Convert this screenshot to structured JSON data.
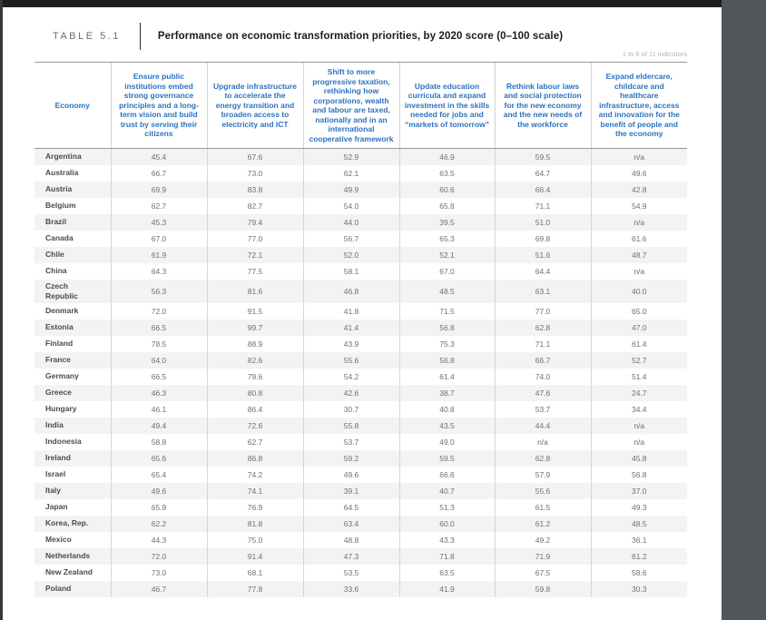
{
  "masthead": {
    "table_label": "TABLE 5.1",
    "title": "Performance on economic transformation priorities, by 2020 score (0–100 scale)",
    "indicator_note": "1 to 6 of 11 indicators"
  },
  "table": {
    "economy_header": "Economy",
    "columns": [
      "Ensure public institutions embed strong governance principles and a long-term vision and build trust by serving their citizens",
      "Upgrade infrastructure to accelerate the energy transition and broaden access to electricity and ICT",
      "Shift to more progressive taxation, rethinking how corporations, wealth and labour are taxed, nationally and in an international cooperative framework",
      "Update education curricula and expand investment in the skills needed for jobs and “markets of tomorrow”",
      "Rethink labour laws and social protection for the new economy and the new needs of the workforce",
      "Expand eldercare, childcare and healthcare infrastructure, access and innovation for the benefit of people and the economy"
    ],
    "rows": [
      {
        "economy": "Argentina",
        "values": [
          "45.4",
          "67.6",
          "52.9",
          "46.9",
          "59.5",
          "n/a"
        ]
      },
      {
        "economy": "Australia",
        "values": [
          "66.7",
          "73.0",
          "62.1",
          "63.5",
          "64.7",
          "49.6"
        ]
      },
      {
        "economy": "Austria",
        "values": [
          "69.9",
          "83.8",
          "49.9",
          "60.6",
          "66.4",
          "42.8"
        ]
      },
      {
        "economy": "Belgium",
        "values": [
          "62.7",
          "82.7",
          "54.0",
          "65.8",
          "71.1",
          "54.9"
        ]
      },
      {
        "economy": "Brazil",
        "values": [
          "45.3",
          "79.4",
          "44.0",
          "39.5",
          "51.0",
          "n/a"
        ]
      },
      {
        "economy": "Canada",
        "values": [
          "67.0",
          "77.0",
          "56.7",
          "65.3",
          "69.8",
          "61.6"
        ]
      },
      {
        "economy": "Chile",
        "values": [
          "61.9",
          "72.1",
          "52.0",
          "52.1",
          "51.6",
          "48.7"
        ]
      },
      {
        "economy": "China",
        "values": [
          "64.3",
          "77.5",
          "58.1",
          "67.0",
          "64.4",
          "n/a"
        ]
      },
      {
        "economy": "Czech Republic",
        "values": [
          "56.3",
          "81.6",
          "46.8",
          "48.5",
          "63.1",
          "40.0"
        ]
      },
      {
        "economy": "Denmark",
        "values": [
          "72.0",
          "91.5",
          "41.8",
          "71.5",
          "77.0",
          "65.0"
        ]
      },
      {
        "economy": "Estonia",
        "values": [
          "66.5",
          "99.7",
          "41.4",
          "56.8",
          "62.8",
          "47.0"
        ]
      },
      {
        "economy": "Finland",
        "values": [
          "78.5",
          "88.9",
          "43.9",
          "75.3",
          "71.1",
          "61.4"
        ]
      },
      {
        "economy": "France",
        "values": [
          "64.0",
          "82.6",
          "55.6",
          "56.8",
          "66.7",
          "52.7"
        ]
      },
      {
        "economy": "Germany",
        "values": [
          "66.5",
          "79.6",
          "54.2",
          "61.4",
          "74.0",
          "51.4"
        ]
      },
      {
        "economy": "Greece",
        "values": [
          "46.3",
          "80.8",
          "42.6",
          "38.7",
          "47.6",
          "24.7"
        ]
      },
      {
        "economy": "Hungary",
        "values": [
          "46.1",
          "86.4",
          "30.7",
          "40.8",
          "53.7",
          "34.4"
        ]
      },
      {
        "economy": "India",
        "values": [
          "49.4",
          "72.6",
          "55.8",
          "43.5",
          "44.4",
          "n/a"
        ]
      },
      {
        "economy": "Indonesia",
        "values": [
          "58.8",
          "62.7",
          "53.7",
          "49.0",
          "n/a",
          "n/a"
        ]
      },
      {
        "economy": "Ireland",
        "values": [
          "65.6",
          "86.8",
          "59.2",
          "59.5",
          "62.8",
          "45.8"
        ]
      },
      {
        "economy": "Israel",
        "values": [
          "65.4",
          "74.2",
          "49.6",
          "66.6",
          "57.9",
          "56.8"
        ]
      },
      {
        "economy": "Italy",
        "values": [
          "49.6",
          "74.1",
          "39.1",
          "40.7",
          "55.6",
          "37.0"
        ]
      },
      {
        "economy": "Japan",
        "values": [
          "65.9",
          "76.9",
          "64.5",
          "51.3",
          "61.5",
          "49.3"
        ]
      },
      {
        "economy": "Korea, Rep.",
        "values": [
          "62.2",
          "81.8",
          "63.4",
          "60.0",
          "61.2",
          "48.5"
        ]
      },
      {
        "economy": "Mexico",
        "values": [
          "44.3",
          "75.0",
          "48.8",
          "43.3",
          "49.2",
          "36.1"
        ]
      },
      {
        "economy": "Netherlands",
        "values": [
          "72.0",
          "91.4",
          "47.3",
          "71.8",
          "71.9",
          "61.2"
        ]
      },
      {
        "economy": "New Zealand",
        "values": [
          "73.0",
          "68.1",
          "53.5",
          "63.5",
          "67.5",
          "58.6"
        ]
      },
      {
        "economy": "Poland",
        "values": [
          "46.7",
          "77.8",
          "33.6",
          "41.9",
          "59.8",
          "30.3"
        ]
      }
    ]
  },
  "colors": {
    "header_blue": "#2b72c0",
    "value_gray": "#6f7072",
    "economy_label": "#4b4b4d",
    "row_stripe": "#f3f3f3",
    "rule_gray": "#97989a",
    "top_bar": "#1d1f21",
    "viewer_background": "#53575a",
    "page_background": "#ffffff"
  }
}
